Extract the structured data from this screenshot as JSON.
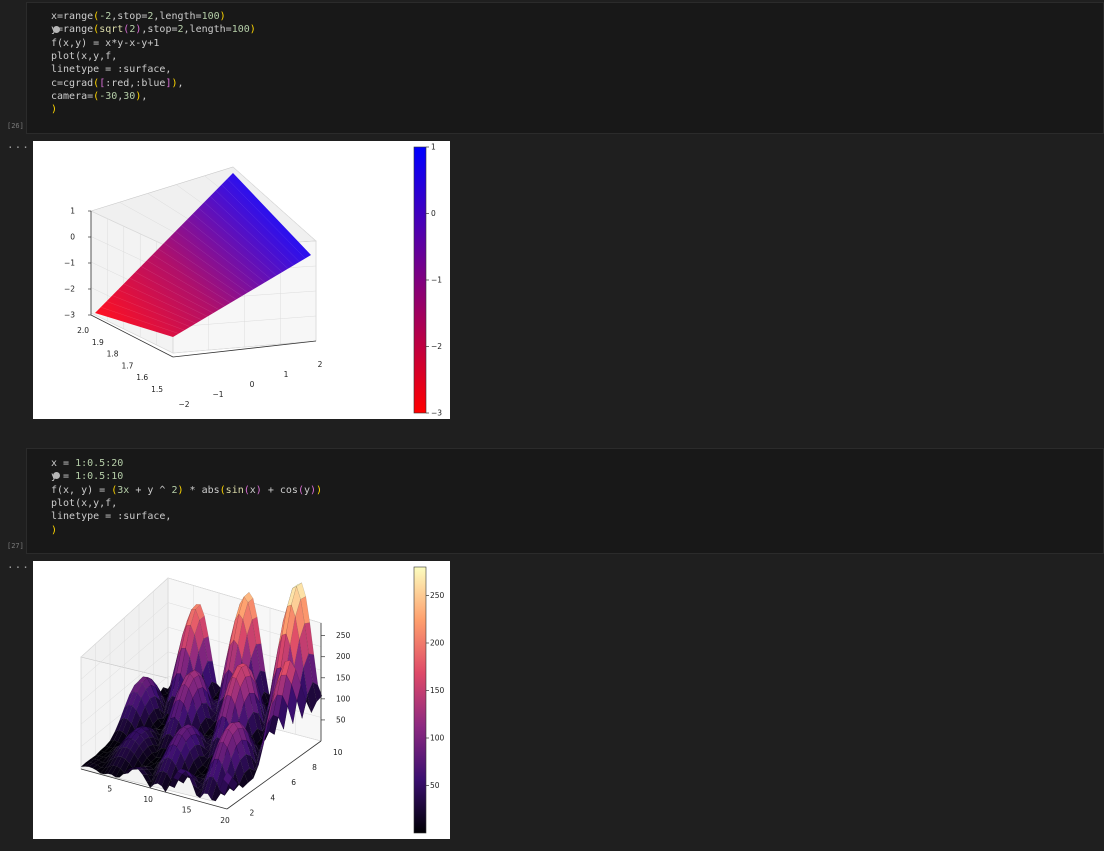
{
  "cells": [
    {
      "execution_count": "[26]",
      "output_prompt": "...",
      "code": {
        "l1": {
          "a": "x=range",
          "b": "(",
          "c": "-2",
          "d": ",stop=",
          "e": "2",
          "f": ",length=",
          "g": "100",
          "h": ")"
        },
        "l2": {
          "a": "y=range",
          "b": "(",
          "c": "sqrt",
          "d": "(",
          "e": "2",
          "f": ")",
          "g": ",stop=",
          "h": "2",
          "i": ",length=",
          "j": "100",
          "k": ")"
        },
        "l3": "f(x,y) = x*y-x-y+1",
        "l4": "plot(x,y,f,",
        "l5": "linetype = :surface,",
        "l6": {
          "a": "c=cgrad",
          "b": "(",
          "c": "[",
          "d": ":red,:blue",
          "e": "]",
          "f": ")",
          "g": ","
        },
        "l7": {
          "a": "camera=",
          "b": "(",
          "c": "-30",
          "d": ",",
          "e": "30",
          "f": ")",
          "g": ","
        },
        "l8": ")"
      },
      "chart_data": {
        "type": "surface",
        "function": "f(x,y) = x*y-x-y+1",
        "colormap": [
          "#ff0000",
          "#0000ff"
        ],
        "colormap_names": [
          "red",
          "blue"
        ],
        "camera": [
          -30,
          30
        ],
        "x_ticks": [
          "−2",
          "−1",
          "0",
          "1",
          "2"
        ],
        "y_ticks": [
          "1.5",
          "1.6",
          "1.7",
          "1.8",
          "1.9",
          "2.0"
        ],
        "z_ticks": [
          "−3",
          "−2",
          "−1",
          "0",
          "1"
        ],
        "colorbar_ticks": [
          "1",
          "0",
          "−1",
          "−2",
          "−3"
        ],
        "xlim": [
          -2,
          2
        ],
        "ylim": [
          1.4142,
          2
        ],
        "zlim": [
          -3,
          1
        ],
        "grid": true
      }
    },
    {
      "execution_count": "[27]",
      "output_prompt": "...",
      "code": {
        "l1": {
          "a": "x = ",
          "b": "1:0.5:20"
        },
        "l2": {
          "a": "y = ",
          "b": "1:0.5:10"
        },
        "l3": {
          "a": "f(x, y) = ",
          "b": "(",
          "c": "3x",
          "d": " + y ^ ",
          "e": "2",
          "f": ")",
          "g": " * abs",
          "h": "(",
          "i": "sin",
          "j": "(",
          "k": "x",
          "l": ")",
          "m": " + cos",
          "n": "(",
          "o": "y",
          "p": ")",
          "q": ")"
        },
        "l4": "plot(x,y,f,",
        "l5": "linetype = :surface,",
        "l6": ")"
      },
      "chart_data": {
        "type": "surface",
        "function": "f(x, y) = (3x + y ^ 2) * abs(sin(x) + cos(y))",
        "colormap": [
          "#000004",
          "#3b0f70",
          "#8c2981",
          "#de4968",
          "#fe9f6d",
          "#fcfdbf"
        ],
        "colormap_names": [
          "inferno"
        ],
        "x_ticks": [
          "5",
          "10",
          "15",
          "20"
        ],
        "y_ticks": [
          "2",
          "4",
          "6",
          "8",
          "10"
        ],
        "z_ticks": [
          "50",
          "100",
          "150",
          "200",
          "250"
        ],
        "colorbar_ticks": [
          "250",
          "200",
          "150",
          "100",
          "50"
        ],
        "xlim": [
          1,
          20
        ],
        "ylim": [
          1,
          10
        ],
        "zlim": [
          0,
          280
        ],
        "grid": true
      }
    }
  ]
}
